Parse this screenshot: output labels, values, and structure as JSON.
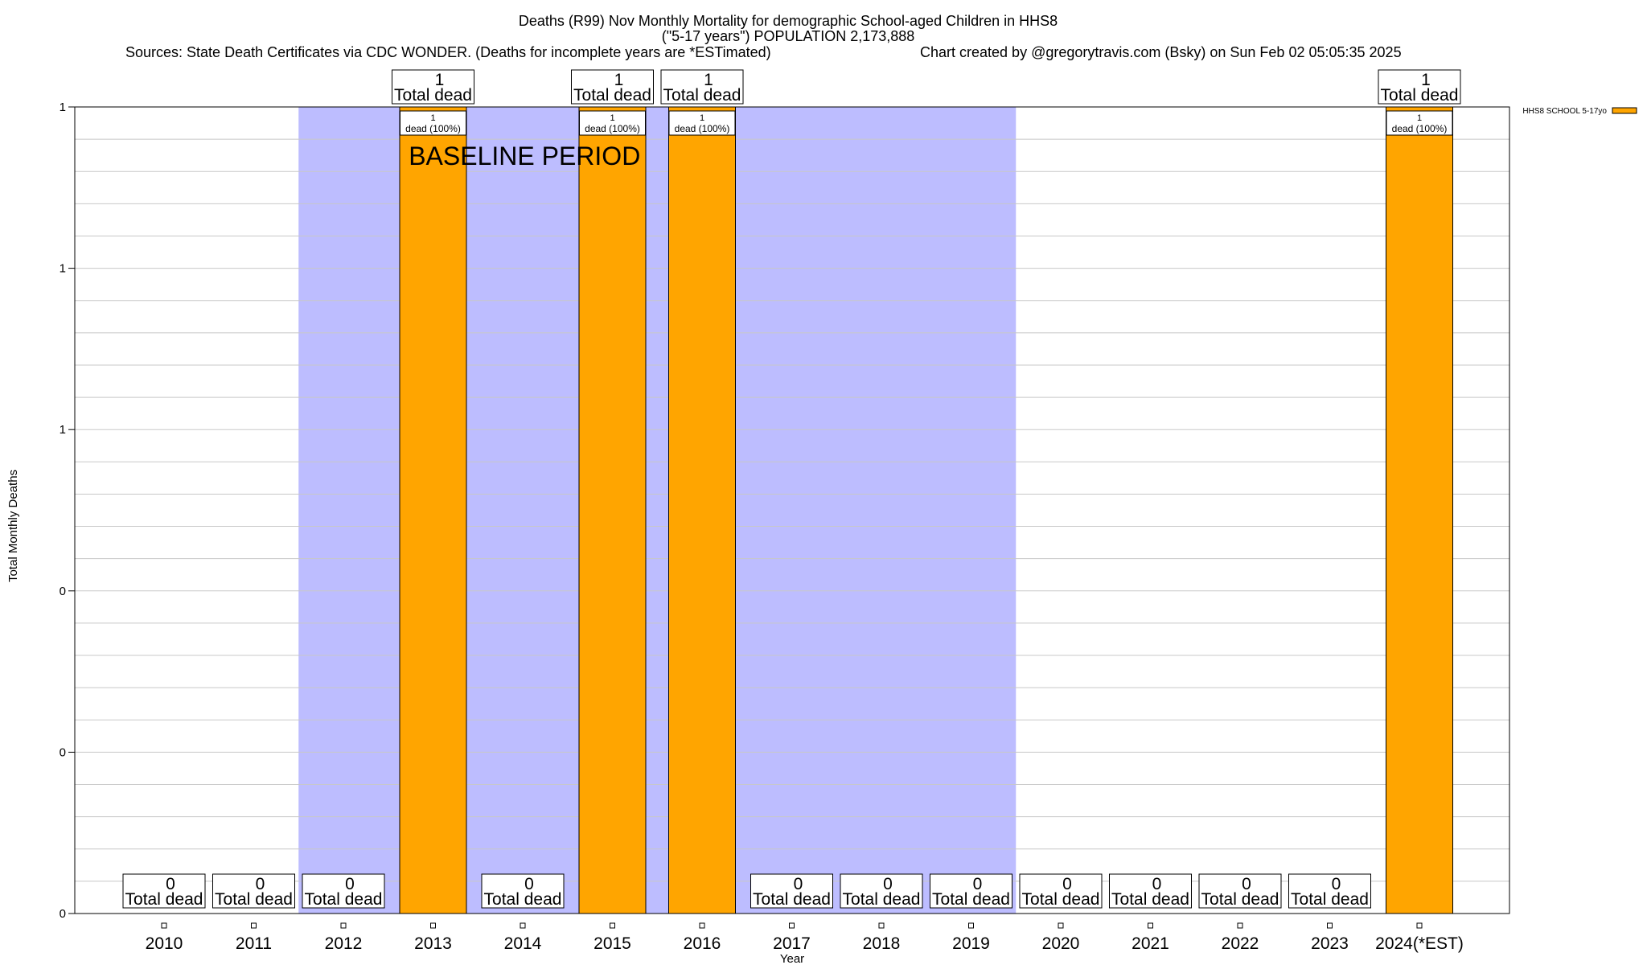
{
  "chart_data": {
    "type": "bar",
    "title_lines": [
      "Deaths (R99) Nov Monthly Mortality for demographic School-aged Children in HHS8",
      "(\"5-17 years\") POPULATION 2,173,888"
    ],
    "sources": "Sources: State Death Certificates via CDC WONDER. (Deaths for incomplete years are *ESTimated)",
    "credit": "Chart created by @gregorytravis.com (Bsky) on Sun Feb 02 05:05:35 2025",
    "xlabel": "Year",
    "ylabel": "Total Monthly Deaths",
    "categories": [
      "2010",
      "2011",
      "2012",
      "2013",
      "2014",
      "2015",
      "2016",
      "2017",
      "2018",
      "2019",
      "2020",
      "2021",
      "2022",
      "2023",
      "2024(*EST)"
    ],
    "series": [
      {
        "name": "HHS8 SCHOOL 5-17yo",
        "values": [
          0,
          0,
          0,
          1,
          0,
          1,
          1,
          0,
          0,
          0,
          0,
          0,
          0,
          0,
          1
        ]
      }
    ],
    "total_label_suffix": "Total dead",
    "bar_label_suffix": "dead (100%)",
    "ylim": [
      0,
      1
    ],
    "ytick_values": [
      0,
      0.2,
      0.4,
      0.6,
      0.8,
      1.0
    ],
    "ytick_labels": [
      "0",
      "0",
      "0",
      "1",
      "1",
      "1"
    ],
    "baseline_period": {
      "label": "BASELINE PERIOD",
      "from": "2012",
      "to": "2019"
    },
    "grid": true,
    "legend_position": "top-right",
    "colors": {
      "bar": "#FFA500",
      "baseline": "#BDBDFF",
      "grid": "#C8C8C8"
    }
  }
}
